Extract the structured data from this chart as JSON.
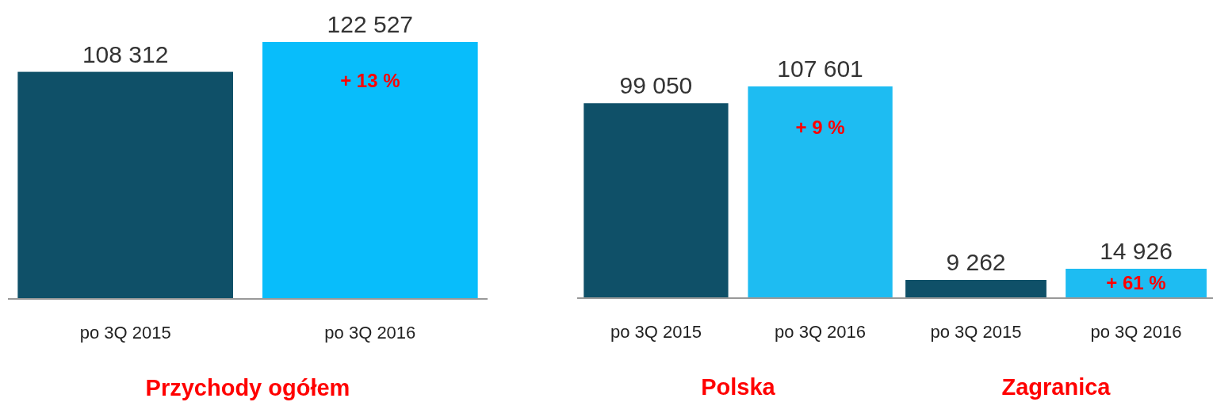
{
  "chart_data": [
    {
      "type": "bar",
      "title": "Przychody ogółem",
      "categories": [
        "po 3Q 2015",
        "po 3Q 2016"
      ],
      "values": [
        108312,
        122527
      ],
      "colors": [
        "#0f5068",
        "#08bdfb"
      ],
      "data_labels": true,
      "annotations": [
        "+ 13 %"
      ]
    },
    {
      "type": "bar",
      "title": "Polska",
      "categories": [
        "po 3Q 2015",
        "po 3Q 2016"
      ],
      "values": [
        99050,
        107601
      ],
      "colors": [
        "#0f5068",
        "#1ebcf2"
      ],
      "data_labels": true,
      "annotations": [
        "+ 9 %"
      ]
    },
    {
      "type": "bar",
      "title": "Zagranica",
      "categories": [
        "po 3Q 2015",
        "po 3Q 2016"
      ],
      "values": [
        9262,
        14926
      ],
      "colors": [
        "#0f5068",
        "#1ebcf2"
      ],
      "data_labels": true,
      "annotations": [
        "+ 61 %"
      ]
    }
  ]
}
